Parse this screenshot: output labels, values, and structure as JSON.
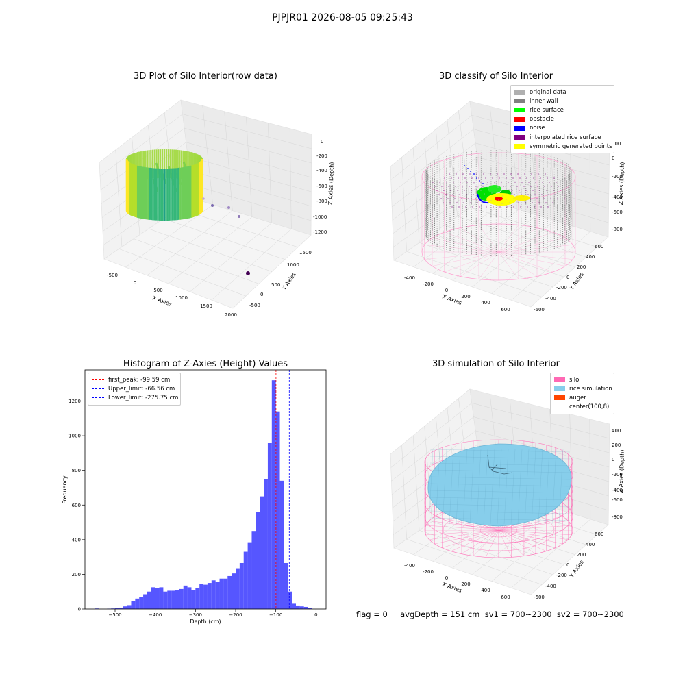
{
  "suptitle": "PJPJR01 2026-08-05 09:25:43",
  "chart_data": [
    {
      "type": "scatter3d",
      "title": "3D Plot of Silo Interior(row data)",
      "xlabel": "X Axies",
      "ylabel": "Y Axies",
      "zlabel": "Z Axies (Depth)",
      "xticks": [
        "-500",
        "0",
        "500",
        "1000",
        "1500",
        "2000"
      ],
      "yticks": [
        "-500",
        "0",
        "500",
        "1000",
        "1500"
      ],
      "zticks": [
        "0",
        "-200",
        "-400",
        "-600",
        "-800",
        "-1000",
        "-1200"
      ],
      "outliers": [
        [
          1600,
          -300,
          -1100
        ],
        [
          800,
          200,
          -1000
        ],
        [
          900,
          300,
          -1000
        ],
        [
          1000,
          400,
          -1050
        ]
      ],
      "colormap": "viridis",
      "grid": true
    },
    {
      "type": "scatter3d",
      "title": "3D classify of Silo Interior",
      "xlabel": "X Axies",
      "ylabel": "Y Axies",
      "zlabel": "Z Axies (Depth)",
      "xticks": [
        "-400",
        "-200",
        "0",
        "200",
        "400",
        "600"
      ],
      "yticks": [
        "-600",
        "-400",
        "-200",
        "0",
        "200",
        "400",
        "600"
      ],
      "zticks": [
        "200",
        "0",
        "-200",
        "-400",
        "-600",
        "-800"
      ],
      "legend": [
        {
          "label": "original data",
          "color": "#b0b0b0"
        },
        {
          "label": "inner wall",
          "color": "#808080"
        },
        {
          "label": "rice surface",
          "color": "#00ff00"
        },
        {
          "label": "obstacle",
          "color": "#ff0000"
        },
        {
          "label": "noise",
          "color": "#0000ff"
        },
        {
          "label": "interpolated rice surface",
          "color": "#800080"
        },
        {
          "label": "symmetric generated points",
          "color": "#ffff00"
        }
      ],
      "legend_position": "top-right",
      "grid": true
    },
    {
      "type": "bar",
      "title": "Histogram of Z-Axies (Height) Values",
      "xlabel": "Depth (cm)",
      "ylabel": "Frequency",
      "xlim": [
        -575,
        25
      ],
      "ylim": [
        0,
        1380
      ],
      "xticks": [
        -500,
        -400,
        -300,
        -200,
        -100,
        0
      ],
      "yticks": [
        0,
        200,
        400,
        600,
        800,
        1000,
        1200
      ],
      "bin_width": 10,
      "bins_start": [
        -560,
        -550,
        -540,
        -530,
        -520,
        -510,
        -500,
        -490,
        -480,
        -470,
        -460,
        -450,
        -440,
        -430,
        -420,
        -410,
        -400,
        -390,
        -380,
        -370,
        -360,
        -350,
        -340,
        -330,
        -320,
        -310,
        -300,
        -290,
        -280,
        -270,
        -260,
        -250,
        -240,
        -230,
        -220,
        -210,
        -200,
        -190,
        -180,
        -170,
        -160,
        -150,
        -140,
        -130,
        -120,
        -110,
        -100,
        -90,
        -80,
        -70,
        -60,
        -50,
        -40,
        -30,
        -20,
        -10
      ],
      "values": [
        0,
        3,
        0,
        0,
        2,
        3,
        4,
        8,
        15,
        22,
        45,
        60,
        70,
        85,
        100,
        125,
        120,
        125,
        100,
        105,
        105,
        110,
        115,
        135,
        125,
        110,
        120,
        145,
        140,
        150,
        165,
        155,
        175,
        175,
        190,
        205,
        235,
        265,
        330,
        385,
        450,
        560,
        650,
        750,
        960,
        1320,
        1140,
        740,
        265,
        100,
        30,
        20,
        15,
        12,
        5,
        0
      ],
      "bar_color": "#4444ff",
      "vlines": [
        {
          "label": "first_peak: -99.59 cm",
          "x": -99.59,
          "color": "#ff0000"
        },
        {
          "label": "Upper_limit: -66.56 cm",
          "x": -66.56,
          "color": "#0000ff"
        },
        {
          "label": "Lower_limit: -275.75 cm",
          "x": -275.75,
          "color": "#0000ff"
        }
      ],
      "legend_position": "top-left"
    },
    {
      "type": "surface3d",
      "title": "3D simulation of Silo Interior",
      "xlabel": "X Axies",
      "ylabel": "Y Axies",
      "zlabel": "Z Axies (Depth)",
      "xticks": [
        "-400",
        "-200",
        "0",
        "200",
        "400",
        "600"
      ],
      "yticks": [
        "-600",
        "-400",
        "-200",
        "0",
        "200",
        "400",
        "600"
      ],
      "zticks": [
        "400",
        "200",
        "0",
        "-200",
        "-400",
        "-600",
        "-800"
      ],
      "legend": [
        {
          "label": "silo",
          "color": "#ff69b4"
        },
        {
          "label": "rice simulation",
          "color": "#87ceeb"
        },
        {
          "label": "auger",
          "color": "#ff4500"
        },
        {
          "label": "center(100,8)",
          "color": ""
        }
      ],
      "legend_position": "top-right",
      "grid": true
    }
  ],
  "status_text": "flag = 0     avgDepth = 151 cm  sv1 = 700~2300  sv2 = 700~2300"
}
